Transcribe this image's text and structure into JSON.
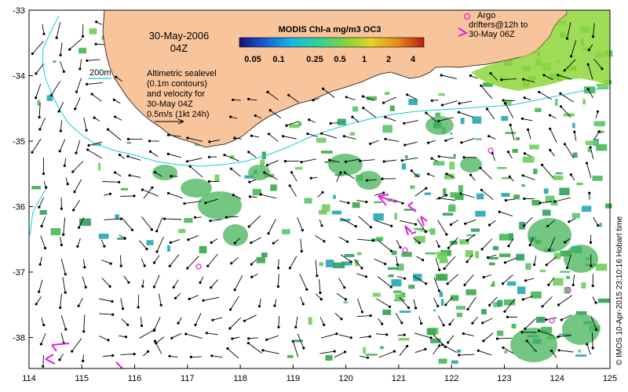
{
  "title": {
    "date": "30-May-2006",
    "time": "04Z"
  },
  "colorbar": {
    "title": "MODIS Chl-a mg/m3 OC3",
    "ticks": [
      "0.05",
      "0.1",
      "0.25",
      "0.5",
      "1",
      "2",
      "4"
    ],
    "colors": [
      "#1a0f7a",
      "#1460d8",
      "#19b8e6",
      "#2fd19a",
      "#7ad63c",
      "#e6d41e",
      "#e68a1a",
      "#b8200e"
    ]
  },
  "legend": {
    "isobath_label": "200m",
    "altimetry_lines": [
      "Altimetric sealevel",
      "(0.1m contours)",
      "and velocity for",
      "30-May 04Z",
      "0.5m/s (1kt 24h)"
    ],
    "argo_lines": [
      "Argo",
      "drifters@12h to",
      "30-May 06Z"
    ]
  },
  "axes": {
    "x_ticks": [
      "114",
      "115",
      "116",
      "117",
      "118",
      "119",
      "120",
      "121",
      "122",
      "123",
      "124",
      "125"
    ],
    "y_ticks": [
      "-33",
      "-34",
      "-35",
      "-36",
      "-37",
      "-38"
    ]
  },
  "credit": "© IMOS 10-Apr-2015 23:10:16 Hobart time",
  "colors": {
    "land": "#f8c49c",
    "isobath": "#22c8d8",
    "chlorophyll": "#3aa84a",
    "argo": "#e020e0",
    "vector": "#000000"
  }
}
